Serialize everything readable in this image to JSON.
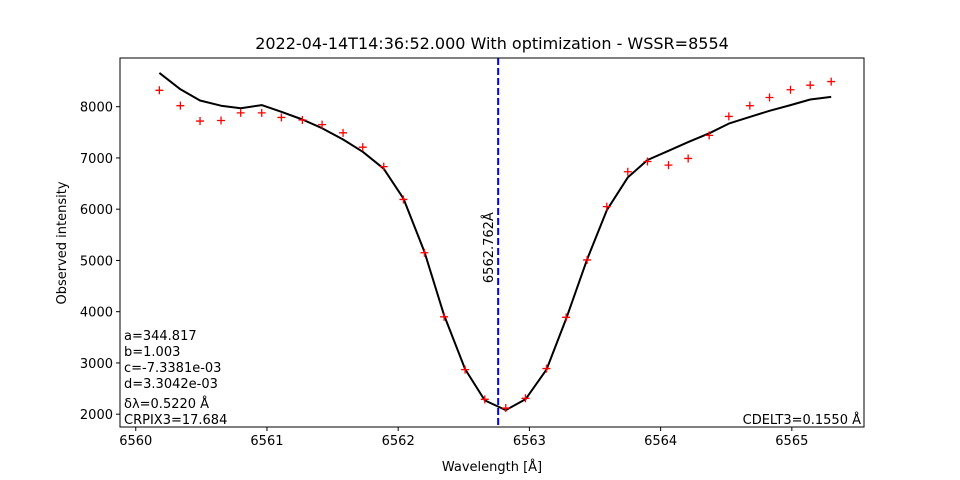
{
  "chart_data": {
    "type": "line",
    "title": "2022-04-14T14:36:52.000 With optimization - WSSR=8554",
    "xlabel": "Wavelength [Å]",
    "ylabel": "Observed intensity",
    "xlim": [
      6559.88,
      6565.55
    ],
    "ylim": [
      1750,
      8950
    ],
    "xticks": [
      6560,
      6561,
      6562,
      6563,
      6564,
      6565
    ],
    "yticks": [
      2000,
      3000,
      4000,
      5000,
      6000,
      7000,
      8000
    ],
    "grid": false,
    "series": [
      {
        "kind": "points",
        "marker": "+",
        "color": "#ff0000",
        "x": [
          6560.18,
          6560.34,
          6560.49,
          6560.65,
          6560.8,
          6560.96,
          6561.11,
          6561.27,
          6561.42,
          6561.58,
          6561.73,
          6561.89,
          6562.04,
          6562.2,
          6562.35,
          6562.51,
          6562.66,
          6562.82,
          6562.97,
          6563.13,
          6563.28,
          6563.44,
          6563.59,
          6563.75,
          6563.9,
          6564.06,
          6564.21,
          6564.37,
          6564.52,
          6564.68,
          6564.83,
          6564.99,
          6565.14,
          6565.3
        ],
        "y": [
          8320,
          8020,
          7720,
          7730,
          7880,
          7880,
          7790,
          7740,
          7650,
          7490,
          7210,
          6830,
          6190,
          5150,
          3900,
          2870,
          2290,
          2120,
          2310,
          2890,
          3890,
          5010,
          6050,
          6730,
          6930,
          6860,
          6990,
          7440,
          7810,
          8020,
          8180,
          8330,
          8420,
          8490
        ]
      },
      {
        "kind": "line",
        "color": "#000000",
        "x": [
          6560.18,
          6560.34,
          6560.49,
          6560.65,
          6560.8,
          6560.96,
          6561.11,
          6561.27,
          6561.42,
          6561.58,
          6561.73,
          6561.89,
          6562.04,
          6562.2,
          6562.35,
          6562.51,
          6562.66,
          6562.82,
          6562.97,
          6563.13,
          6563.28,
          6563.44,
          6563.59,
          6563.75,
          6563.9,
          6564.06,
          6564.21,
          6564.37,
          6564.52,
          6564.68,
          6564.83,
          6564.99,
          6565.14,
          6565.3
        ],
        "y": [
          8660,
          8340,
          8120,
          8020,
          7970,
          8030,
          7900,
          7750,
          7580,
          7360,
          7120,
          6790,
          6210,
          5170,
          3930,
          2880,
          2270,
          2080,
          2290,
          2870,
          3860,
          5020,
          5980,
          6620,
          6960,
          7140,
          7310,
          7480,
          7670,
          7800,
          7920,
          8030,
          8140,
          8190
        ]
      }
    ],
    "vline": {
      "x": 6562.762,
      "label": "6562.762Å",
      "color": "#0000ff",
      "style": "dashed"
    },
    "annotations": {
      "params": [
        "a=344.817",
        "b=1.003",
        "c=-7.3381e-03",
        "d=3.3042e-03",
        "δλ=0.5220 Å",
        "CRPIX3=17.684"
      ],
      "cdelt": "CDELT3=0.1550 Å"
    }
  }
}
